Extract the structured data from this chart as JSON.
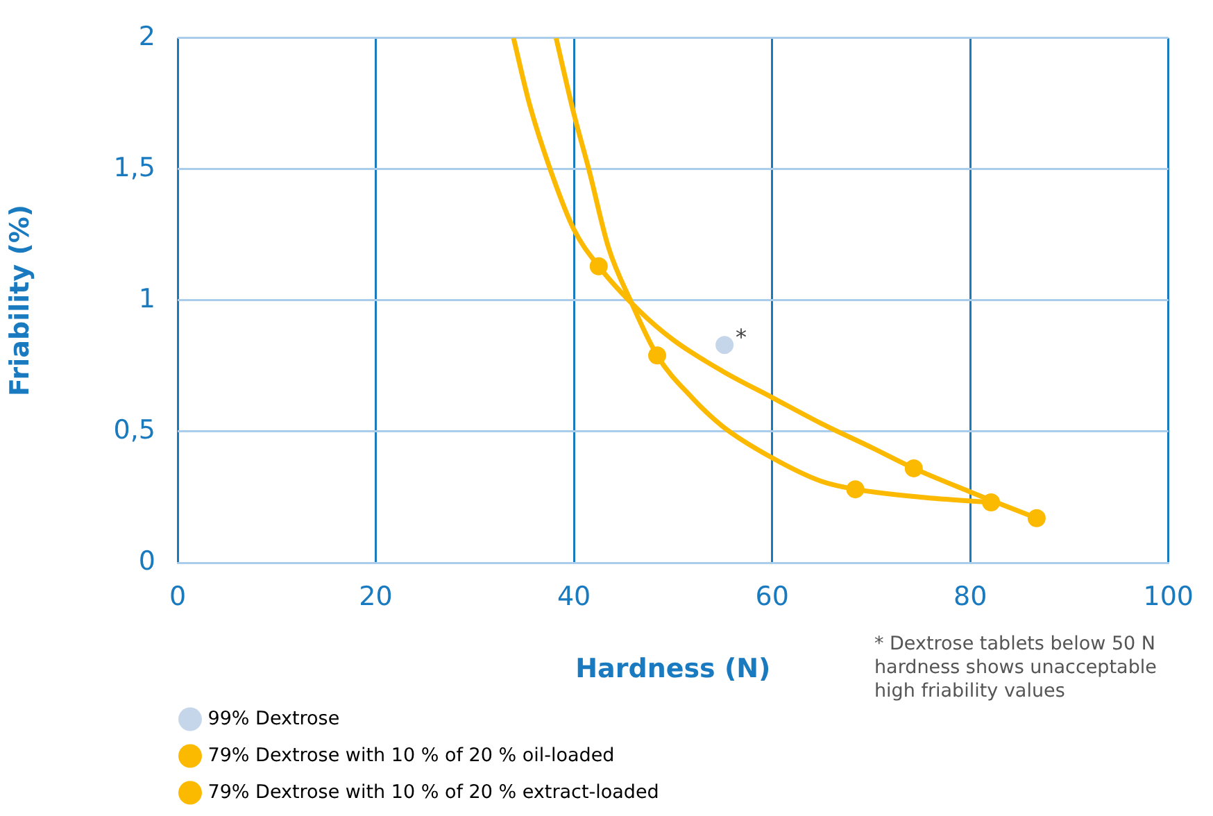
{
  "chart_data": {
    "type": "scatter",
    "xlabel": "Hardness (N)",
    "ylabel": "Friability (%)",
    "xlim": [
      0,
      100
    ],
    "xticks": [
      0,
      20,
      40,
      60,
      80,
      100
    ],
    "ylim": [
      0,
      2
    ],
    "yticks": [
      {
        "value": 0,
        "label": "0"
      },
      {
        "value": 0.5,
        "label": "0,5"
      },
      {
        "value": 1,
        "label": "1"
      },
      {
        "value": 1.5,
        "label": "1,5"
      },
      {
        "value": 2,
        "label": "2"
      }
    ],
    "grid": true,
    "legend": "bottom left",
    "marker": "circle",
    "series": [
      {
        "name": "99% Dextrose",
        "color": "#c5d5ea",
        "x": [
          55.2
        ],
        "values": [
          0.83
        ]
      },
      {
        "name": "79% Dextrose with 10 % of 20 % oil-loaded",
        "color": "#fbb900",
        "x": [
          42.5,
          74.3,
          86.7
        ],
        "values": [
          1.13,
          0.36,
          0.17
        ]
      },
      {
        "type": "line",
        "color": "#fbb900",
        "marker": "none",
        "x": [
          33.9,
          35.5,
          37.6,
          40,
          42.5,
          46.6,
          50,
          55,
          60,
          65,
          70,
          74.3,
          80,
          86.7
        ],
        "values": [
          2,
          1.75,
          1.5,
          1.27,
          1.13,
          0.96,
          0.85,
          0.73,
          0.63,
          0.53,
          0.44,
          0.36,
          0.27,
          0.17
        ]
      },
      {
        "name": "79% Dextrose with 10 % of 20 % extract-loaded",
        "color": "#fbb900",
        "x": [
          48.4,
          68.4,
          82.1
        ],
        "values": [
          0.79,
          0.28,
          0.23
        ]
      },
      {
        "type": "line",
        "color": "#fbb900",
        "marker": "none",
        "x": [
          38.2,
          40,
          41.5,
          43.5,
          45.7,
          48.4,
          51.9,
          55,
          60,
          65,
          68.4,
          75,
          82.1
        ],
        "values": [
          2,
          1.71,
          1.5,
          1.2,
          1,
          0.79,
          0.63,
          0.52,
          0.4,
          0.31,
          0.28,
          0.25,
          0.23
        ]
      }
    ],
    "annotations": [
      {
        "text": "*",
        "x": 55.2,
        "y": 0.83
      },
      "* Dextrose tablets below 50 N hardness shows unacceptable high friability values"
    ]
  }
}
